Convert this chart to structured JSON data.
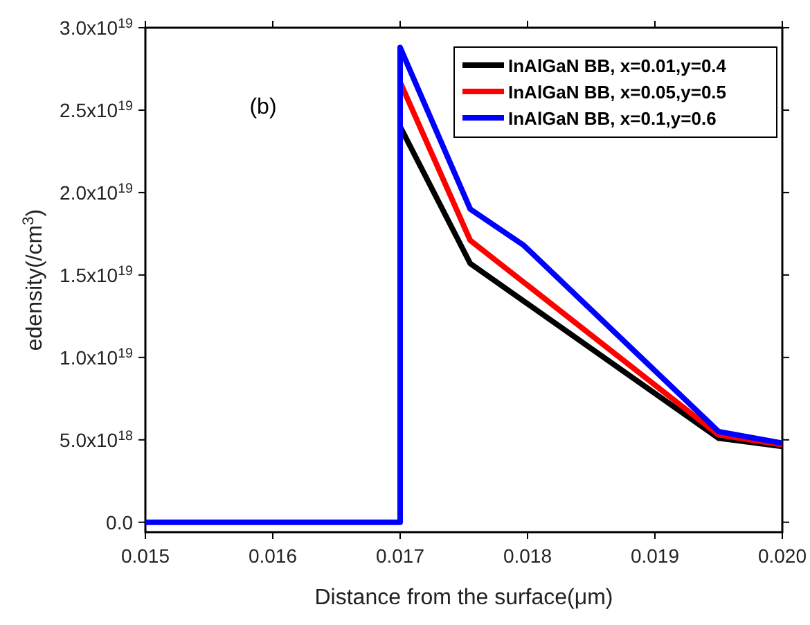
{
  "chart_data": {
    "type": "line",
    "xlabel": "Distance from the surface(μm)",
    "ylabel": "edensity(/cm$^{3}$)",
    "annotations": [
      "(b)"
    ],
    "xlim": [
      0.015,
      0.02
    ],
    "xticks": [
      0.015,
      0.016,
      0.017,
      0.018,
      0.019,
      {
        "value": 0.02,
        "label": "0.020"
      }
    ],
    "ylim": [
      -6e+17,
      3e+19
    ],
    "yticks": [
      {
        "value": 0,
        "label": "0.0"
      },
      {
        "value": 5e+18,
        "label": "5.0x10$^{18}$"
      },
      {
        "value": 1e+19,
        "label": "1.0x10$^{19}$"
      },
      {
        "value": 1.5e+19,
        "label": "1.5x10$^{19}$"
      },
      {
        "value": 2e+19,
        "label": "2.0x10$^{19}$"
      },
      {
        "value": 2.5e+19,
        "label": "2.5x10$^{19}$"
      },
      {
        "value": 3e+19,
        "label": "3.0x10$^{19}$"
      }
    ],
    "grid": false,
    "legend": "top right",
    "marker": "none",
    "line_style": "solid",
    "series": [
      {
        "name": "InAlGaN BB, x=0.01,y=0.4",
        "color": "#000000",
        "x": [
          0.017,
          0.01755,
          0.0195,
          0.02
        ],
        "values": [
          2.4e+19,
          1.57e+19,
          5.1e+18,
          4.6e+18
        ]
      },
      {
        "name": "InAlGaN BB, x=0.05,y=0.5",
        "color": "#ff0000",
        "x": [
          0.017,
          0.01755,
          0.0195,
          0.02
        ],
        "values": [
          2.67e+19,
          1.71e+19,
          5.3e+18,
          4.7e+18
        ]
      },
      {
        "name": "InAlGaN BB, x=0.1,y=0.6",
        "color": "#0000ff",
        "x": [
          0.015,
          0.017,
          0.017,
          0.01755,
          0.01797,
          0.0195,
          0.02
        ],
        "values": [
          0,
          0,
          2.88e+19,
          1.9e+19,
          1.68e+19,
          5.5e+18,
          4.8e+18
        ]
      }
    ]
  }
}
